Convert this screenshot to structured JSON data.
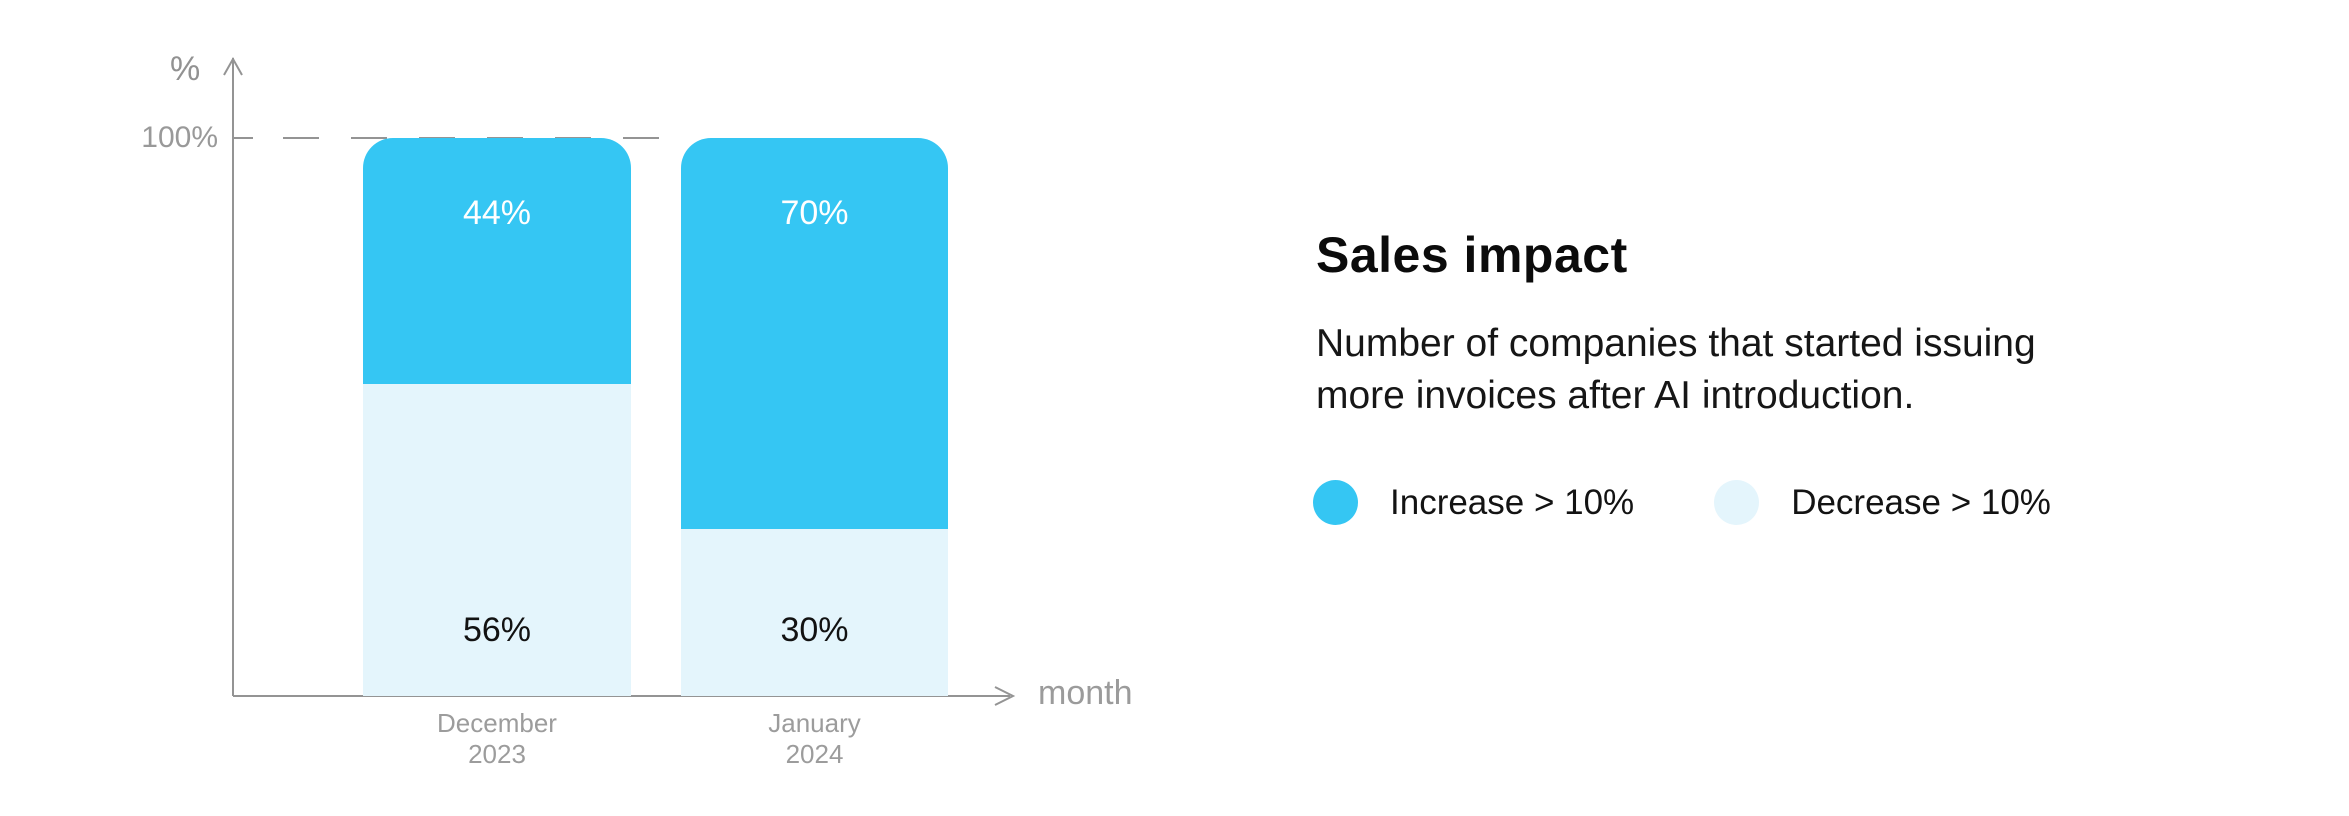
{
  "chart_data": {
    "type": "bar",
    "stacked": true,
    "unit": "percent",
    "categories": [
      "December 2023",
      "January 2024"
    ],
    "series": [
      {
        "name": "Increase > 10%",
        "color": "#35C6F3",
        "values": [
          44,
          70
        ]
      },
      {
        "name": "Decrease > 10%",
        "color": "#E4F5FC",
        "values": [
          56,
          30
        ]
      }
    ],
    "title": "Sales impact",
    "xlabel": "month",
    "ylabel": "%",
    "ylim": [
      0,
      100
    ],
    "y_ticks": [
      "100%"
    ],
    "grid": "single dashed guide line at 100%",
    "legend_position": "right panel, below description"
  },
  "axis": {
    "y_unit": "%",
    "y_tick_100": "100%",
    "x_label": "month"
  },
  "bars": [
    {
      "month_line1": "December",
      "month_line2": "2023",
      "increase": 44,
      "decrease": 56,
      "increase_label": "44%",
      "decrease_label": "56%"
    },
    {
      "month_line1": "January",
      "month_line2": "2024",
      "increase": 70,
      "decrease": 30,
      "increase_label": "70%",
      "decrease_label": "30%"
    }
  ],
  "panel": {
    "title": "Sales impact",
    "description": "Number of companies that started issuing more invoices after AI introduction.",
    "description_lines": [
      "Number of companies that started issuing",
      "more invoices after AI introduction."
    ],
    "legend": [
      {
        "label": "Increase > 10%",
        "color": "#35C6F3"
      },
      {
        "label": "Decrease > 10%",
        "color": "#E4F5FC"
      }
    ]
  },
  "colors": {
    "increase": "#35C6F3",
    "decrease": "#E4F5FC",
    "axis": "#949494",
    "gray_text": "#999999",
    "dark_text": "#121212",
    "background": "#FFFFFF"
  }
}
